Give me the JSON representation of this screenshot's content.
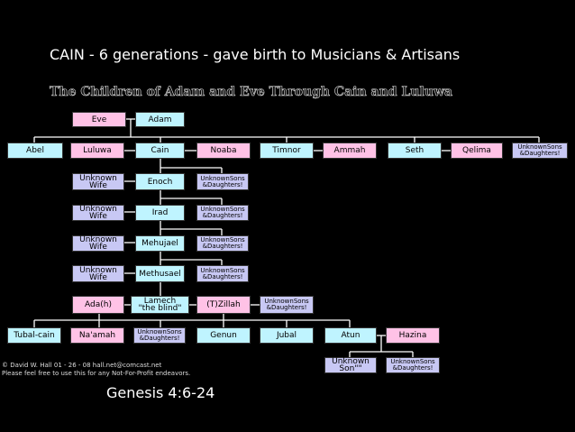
{
  "header": {
    "title": "CAIN  -  6 generations  -  gave birth to Musicians & Artisans",
    "subtitle": "The Children of Adam and Eve Through Cain and Luluwa"
  },
  "nodes": [
    {
      "label": "Eve"
    },
    {
      "label": "Adam"
    },
    {
      "label": "Abel"
    },
    {
      "label": "Luluwa"
    },
    {
      "label": "Cain"
    },
    {
      "label": "Noaba"
    },
    {
      "label": "Timnor"
    },
    {
      "label": "Ammah"
    },
    {
      "label": "Seth"
    },
    {
      "label": "Qelima"
    },
    {
      "label": "UnknownSons\n&Daughters!"
    },
    {
      "label": "Unknown\nWife"
    },
    {
      "label": "Enoch"
    },
    {
      "label": "UnknownSons\n&Daughters!"
    },
    {
      "label": "Unknown\nWife"
    },
    {
      "label": "Irad"
    },
    {
      "label": "UnknownSons\n&Daughters!"
    },
    {
      "label": "Unknown\nWife"
    },
    {
      "label": "Mehujael"
    },
    {
      "label": "UnknownSons\n&Daughters!"
    },
    {
      "label": "Unknown\nWife"
    },
    {
      "label": "Methusael"
    },
    {
      "label": "UnknownSons\n&Daughters!"
    },
    {
      "label": "Ada(h)"
    },
    {
      "label": "Lamech\n\"the blind\""
    },
    {
      "label": "(T)Zillah"
    },
    {
      "label": "UnknownSons\n&Daughters!"
    },
    {
      "label": "Tubal-cain"
    },
    {
      "label": "Na'amah"
    },
    {
      "label": "UnknownSons\n&Daughters!"
    },
    {
      "label": "Genun"
    },
    {
      "label": "Jubal"
    },
    {
      "label": "Atun"
    },
    {
      "label": "Hazina"
    },
    {
      "label": "Unknown\nSon\"\""
    },
    {
      "label": "UnknownSons\n&Daughters!"
    }
  ],
  "footer": {
    "credit": "© David W. Hall  01 - 26 - 08   hall.net@comcast.net",
    "note": "Please feel free to use this for any Not-For-Profit endeavors.",
    "reference": "Genesis 4:6-24"
  }
}
